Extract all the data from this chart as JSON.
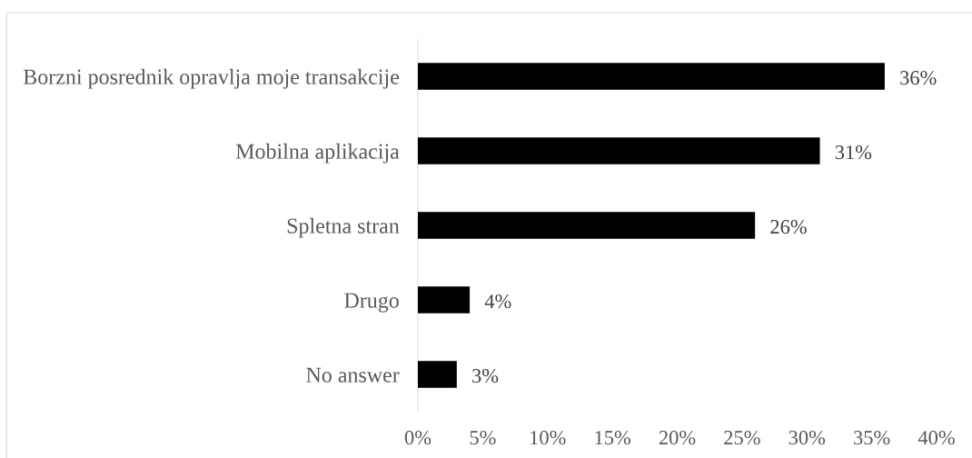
{
  "chart_data": {
    "type": "bar",
    "orientation": "horizontal",
    "categories": [
      "Borzni posrednik opravlja moje transakcije",
      "Mobilna aplikacija",
      "Spletna stran",
      "Drugo",
      "No answer"
    ],
    "values": [
      36,
      31,
      26,
      4,
      3
    ],
    "color": "#000000",
    "value_labels": [
      "36%",
      "31%",
      "26%",
      "4%",
      "3%"
    ],
    "xlim": [
      0,
      40
    ],
    "xticks": [
      {
        "value": 0,
        "label": "0%"
      },
      {
        "value": 5,
        "label": "5%"
      },
      {
        "value": 10,
        "label": "10%"
      },
      {
        "value": 15,
        "label": "15%"
      },
      {
        "value": 20,
        "label": "20%"
      },
      {
        "value": 25,
        "label": "25%"
      },
      {
        "value": 30,
        "label": "30%"
      },
      {
        "value": 35,
        "label": "35%"
      },
      {
        "value": 40,
        "label": "40%"
      }
    ]
  }
}
